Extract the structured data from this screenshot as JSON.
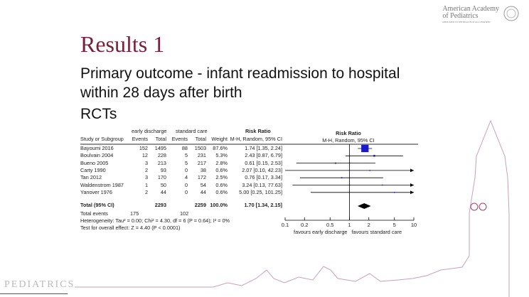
{
  "slide": {
    "title": "Results 1",
    "line1": "Primary outcome - infant readmission to hospital",
    "line2": "within 28 days after birth",
    "line3": "RCTs"
  },
  "logo": {
    "name1": "American Academy",
    "name2": "of Pediatrics",
    "tagline": "DEDICATED TO THE HEALTH OF ALL CHILDREN"
  },
  "footer_logo": "PEDIATRICS",
  "chart_data": {
    "type": "forest",
    "group_headers": {
      "exp": "early discharge",
      "ctl": "standard care",
      "rr": "Risk Ratio",
      "plot": "Risk Ratio"
    },
    "col_headers": [
      "Study or Subgroup",
      "Events",
      "Total",
      "Events",
      "Total",
      "Weight",
      "M-H, Random, 95% CI",
      "M-H, Random, 95% CI"
    ],
    "studies": [
      {
        "name": "Bayoumi 2016",
        "e_events": "152",
        "e_total": "1495",
        "c_events": "88",
        "c_total": "1503",
        "weight": "87.6%",
        "rr_text": "1.74 [1.35, 2.24]",
        "rr": 1.74,
        "lo": 1.35,
        "hi": 2.24,
        "w": 87.6
      },
      {
        "name": "Boulvain 2004",
        "e_events": "12",
        "e_total": "228",
        "c_events": "5",
        "c_total": "231",
        "weight": "5.3%",
        "rr_text": "2.43 [0.87, 6.79]",
        "rr": 2.43,
        "lo": 0.87,
        "hi": 6.79,
        "w": 5.3
      },
      {
        "name": "Bueno 2005",
        "e_events": "3",
        "e_total": "213",
        "c_events": "5",
        "c_total": "217",
        "weight": "2.8%",
        "rr_text": "0.61 [0.15, 2.53]",
        "rr": 0.61,
        "lo": 0.15,
        "hi": 2.53,
        "w": 2.8
      },
      {
        "name": "Carty 1990",
        "e_events": "2",
        "e_total": "93",
        "c_events": "0",
        "c_total": "38",
        "weight": "0.6%",
        "rr_text": "2.07 [0.10, 42.23]",
        "rr": 2.07,
        "lo": 0.1,
        "hi": 42.23,
        "w": 0.6
      },
      {
        "name": "Tan 2012",
        "e_events": "3",
        "e_total": "170",
        "c_events": "4",
        "c_total": "172",
        "weight": "2.5%",
        "rr_text": "0.76 [0.17, 3.34]",
        "rr": 0.76,
        "lo": 0.17,
        "hi": 3.34,
        "w": 2.5
      },
      {
        "name": "Waldenstrom 1987",
        "e_events": "1",
        "e_total": "50",
        "c_events": "0",
        "c_total": "54",
        "weight": "0.6%",
        "rr_text": "3.24 [0.13, 77.63]",
        "rr": 3.24,
        "lo": 0.13,
        "hi": 77.63,
        "w": 0.6
      },
      {
        "name": "Yanover 1976",
        "e_events": "2",
        "e_total": "44",
        "c_events": "0",
        "c_total": "44",
        "weight": "0.6%",
        "rr_text": "5.00 [0.25, 101.25]",
        "rr": 5.0,
        "lo": 0.25,
        "hi": 101.25,
        "w": 0.6
      }
    ],
    "total": {
      "name": "Total (95% CI)",
      "e_total": "2293",
      "c_total": "2259",
      "weight": "100.0%",
      "rr_text": "1.70 [1.34, 2.15]",
      "rr": 1.7,
      "lo": 1.34,
      "hi": 2.15
    },
    "total_events": {
      "label": "Total events",
      "e": "175",
      "c": "102"
    },
    "heterogeneity": "Heterogeneity: Tau² = 0.00; Chi² = 4.30, df = 6 (P = 0.64); I² = 0%",
    "overall_test": "Test for overall effect: Z = 4.40 (P < 0.0001)",
    "x_scale": "log",
    "xlim": [
      0.1,
      10
    ],
    "ticks": [
      {
        "v": 0.1,
        "label": "0.1"
      },
      {
        "v": 0.2,
        "label": "0.2"
      },
      {
        "v": 0.5,
        "label": "0.5"
      },
      {
        "v": 1,
        "label": "1"
      },
      {
        "v": 2,
        "label": "2"
      },
      {
        "v": 5,
        "label": "5"
      },
      {
        "v": 10,
        "label": "10"
      }
    ],
    "favours_left": "favours early discharge",
    "favours_right": "favours standard care",
    "colors": {
      "square": "#1a1acc",
      "line": "#000000"
    }
  }
}
